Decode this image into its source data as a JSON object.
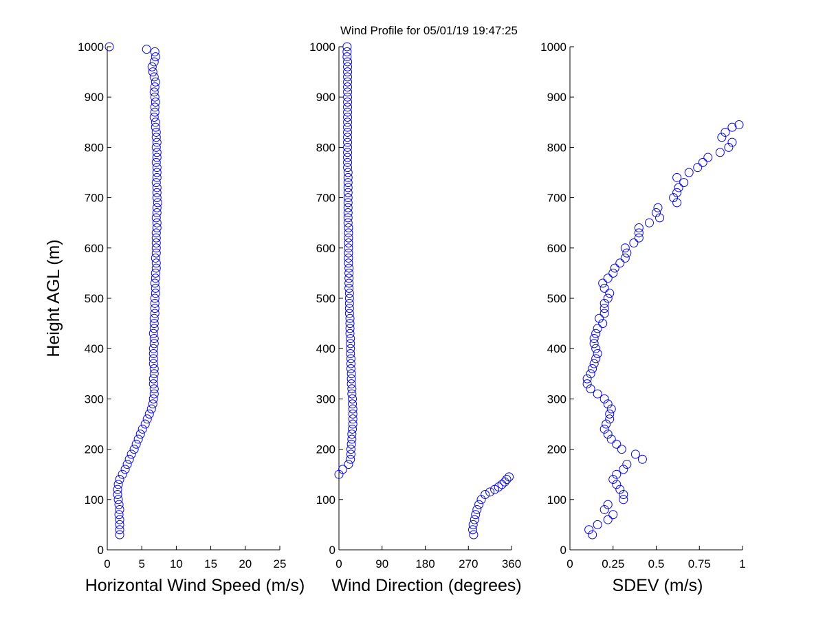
{
  "chart_data": {
    "type": "scatter",
    "title": "Wind Profile for  05/01/19 19:47:25",
    "ylabel": "Height AGL (m)",
    "ylim": [
      0,
      1000
    ],
    "yticks": [
      "0",
      "100",
      "200",
      "300",
      "400",
      "500",
      "600",
      "700",
      "800",
      "900",
      "1000"
    ],
    "marker_color": "#0000ff",
    "panels": [
      {
        "name": "speed",
        "xlabel": "Horizontal Wind Speed (m/s)",
        "xlim": [
          0,
          25
        ],
        "xticks": [
          0,
          5,
          10,
          15,
          20,
          25
        ],
        "xtick_labels": [
          "0",
          "5",
          "10",
          "15",
          "20",
          "25"
        ],
        "series": [
          {
            "name": "speed",
            "y": [
              30,
              40,
              50,
              60,
              70,
              80,
              90,
              100,
              110,
              120,
              130,
              140,
              150,
              160,
              170,
              180,
              190,
              200,
              210,
              220,
              230,
              240,
              250,
              260,
              270,
              280,
              290,
              300,
              310,
              320,
              330,
              340,
              350,
              360,
              370,
              380,
              390,
              400,
              410,
              420,
              430,
              440,
              450,
              460,
              470,
              480,
              490,
              500,
              510,
              520,
              530,
              540,
              550,
              560,
              570,
              580,
              590,
              600,
              610,
              620,
              630,
              640,
              650,
              660,
              670,
              680,
              690,
              700,
              710,
              720,
              730,
              740,
              750,
              760,
              770,
              780,
              790,
              800,
              810,
              820,
              830,
              840,
              850,
              860,
              870,
              880,
              890,
              900,
              910,
              920,
              930,
              940,
              950,
              960,
              970,
              980,
              990,
              995,
              1000
            ],
            "x": [
              1.8,
              1.8,
              1.8,
              1.8,
              1.7,
              1.8,
              1.7,
              1.6,
              1.5,
              1.5,
              1.6,
              1.8,
              2.2,
              2.6,
              2.9,
              3.2,
              3.5,
              3.9,
              4.2,
              4.5,
              4.8,
              5.1,
              5.5,
              5.8,
              6.1,
              6.4,
              6.6,
              6.7,
              6.8,
              6.8,
              6.7,
              6.7,
              6.8,
              6.8,
              6.7,
              6.7,
              6.7,
              6.7,
              6.8,
              6.8,
              6.7,
              6.8,
              6.8,
              6.8,
              6.9,
              6.9,
              6.9,
              6.9,
              7.0,
              7.0,
              6.9,
              7.0,
              7.0,
              7.1,
              7.1,
              7.0,
              7.1,
              7.1,
              7.1,
              7.1,
              7.1,
              7.2,
              7.2,
              7.1,
              7.2,
              7.2,
              7.3,
              7.2,
              7.2,
              7.2,
              7.1,
              7.2,
              7.2,
              7.2,
              7.1,
              7.2,
              7.2,
              7.1,
              7.2,
              7.1,
              7.1,
              7.0,
              7.0,
              6.8,
              6.9,
              6.9,
              7.0,
              6.9,
              6.8,
              6.9,
              7.0,
              6.8,
              6.6,
              6.5,
              6.8,
              7.0,
              6.9,
              5.7,
              0.3
            ]
          }
        ]
      },
      {
        "name": "direction",
        "xlabel": "Wind Direction (degrees)",
        "xlim": [
          0,
          360
        ],
        "xticks": [
          0,
          90,
          180,
          270,
          360
        ],
        "xtick_labels": [
          "0",
          "90",
          "180",
          "270",
          "360"
        ],
        "series": [
          {
            "name": "upper",
            "y": [
              150,
              160,
              170,
              180,
              190,
              200,
              210,
              220,
              230,
              240,
              250,
              260,
              270,
              280,
              290,
              300,
              310,
              320,
              330,
              340,
              350,
              360,
              370,
              380,
              390,
              400,
              410,
              420,
              430,
              440,
              450,
              460,
              470,
              480,
              490,
              500,
              510,
              520,
              530,
              540,
              550,
              560,
              570,
              580,
              590,
              600,
              610,
              620,
              630,
              640,
              650,
              660,
              670,
              680,
              690,
              700,
              710,
              720,
              730,
              740,
              750,
              760,
              770,
              780,
              790,
              800,
              810,
              820,
              830,
              840,
              850,
              860,
              870,
              880,
              890,
              900,
              910,
              920,
              930,
              940,
              950,
              960,
              970,
              980,
              990,
              1000
            ],
            "x": [
              0,
              8,
              20,
              24,
              25,
              25,
              26,
              27,
              27,
              28,
              29,
              29,
              29,
              29,
              28,
              28,
              27,
              27,
              26,
              26,
              26,
              25,
              25,
              25,
              24,
              24,
              24,
              24,
              23,
              23,
              23,
              23,
              22,
              22,
              22,
              22,
              22,
              21,
              21,
              21,
              21,
              21,
              20,
              20,
              20,
              20,
              20,
              20,
              20,
              20,
              19,
              19,
              19,
              19,
              19,
              19,
              19,
              19,
              19,
              19,
              19,
              18,
              18,
              18,
              18,
              18,
              18,
              18,
              18,
              18,
              18,
              18,
              18,
              18,
              18,
              18,
              18,
              18,
              18,
              18,
              18,
              18,
              18,
              17,
              17,
              17
            ]
          },
          {
            "name": "lower",
            "y": [
              30,
              40,
              50,
              60,
              70,
              80,
              90,
              100,
              110,
              115,
              120,
              125,
              130,
              135,
              140,
              145
            ],
            "x": [
              281,
              279,
              280,
              283,
              285,
              288,
              292,
              297,
              305,
              315,
              325,
              333,
              340,
              346,
              350,
              355
            ]
          }
        ]
      },
      {
        "name": "sdev",
        "xlabel": "SDEV  (m/s)",
        "xlim": [
          0,
          1
        ],
        "xticks": [
          0,
          0.25,
          0.5,
          0.75,
          1
        ],
        "xtick_labels": [
          "0",
          "0.25",
          "0.5",
          "0.75",
          "1"
        ],
        "series": [
          {
            "name": "sdev",
            "y": [
              30,
              40,
              50,
              60,
              70,
              80,
              90,
              100,
              110,
              120,
              130,
              140,
              150,
              160,
              170,
              180,
              190,
              200,
              210,
              220,
              230,
              240,
              250,
              260,
              270,
              280,
              290,
              300,
              310,
              320,
              330,
              340,
              350,
              360,
              370,
              380,
              390,
              400,
              410,
              420,
              430,
              440,
              450,
              460,
              470,
              480,
              490,
              500,
              510,
              520,
              530,
              540,
              550,
              560,
              570,
              580,
              590,
              600,
              610,
              620,
              630,
              640,
              650,
              660,
              670,
              680,
              690,
              700,
              710,
              720,
              730,
              740,
              750,
              760,
              770,
              780,
              790,
              800,
              810,
              820,
              830,
              840,
              845
            ],
            "x": [
              0.13,
              0.11,
              0.16,
              0.22,
              0.25,
              0.2,
              0.22,
              0.31,
              0.31,
              0.29,
              0.27,
              0.25,
              0.27,
              0.31,
              0.33,
              0.42,
              0.38,
              0.3,
              0.27,
              0.24,
              0.22,
              0.2,
              0.21,
              0.23,
              0.23,
              0.24,
              0.22,
              0.2,
              0.16,
              0.12,
              0.1,
              0.1,
              0.12,
              0.13,
              0.14,
              0.15,
              0.16,
              0.15,
              0.14,
              0.14,
              0.15,
              0.16,
              0.19,
              0.17,
              0.2,
              0.2,
              0.2,
              0.22,
              0.23,
              0.2,
              0.19,
              0.22,
              0.25,
              0.26,
              0.29,
              0.32,
              0.33,
              0.32,
              0.37,
              0.4,
              0.4,
              0.4,
              0.46,
              0.52,
              0.5,
              0.51,
              0.62,
              0.6,
              0.62,
              0.63,
              0.66,
              0.62,
              0.69,
              0.74,
              0.77,
              0.8,
              0.87,
              0.92,
              0.94,
              0.88,
              0.9,
              0.94,
              0.98
            ]
          }
        ]
      }
    ]
  }
}
